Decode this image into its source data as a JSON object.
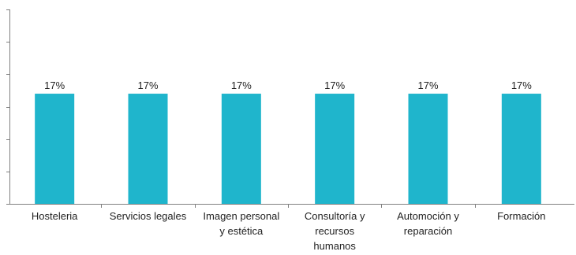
{
  "chart_data": {
    "type": "bar",
    "categories": [
      [
        "Hosteleria"
      ],
      [
        "Servicios legales"
      ],
      [
        "Imagen personal",
        "y estética"
      ],
      [
        "Consultoría y",
        "recursos",
        "humanos"
      ],
      [
        "Automoción y",
        "reparación"
      ],
      [
        "Formación"
      ]
    ],
    "values": [
      17,
      17,
      17,
      17,
      17,
      17
    ],
    "data_labels": [
      "17%",
      "17%",
      "17%",
      "17%",
      "17%",
      "17%"
    ],
    "unit": "%",
    "ylim": [
      0,
      30
    ],
    "y_tick_step": 5,
    "y_tick_labels_shown": false,
    "grid": false,
    "legend": "none",
    "title": "",
    "xlabel": "",
    "ylabel": ""
  },
  "colors": {
    "bar": "#1FB5CC",
    "axis": "#808080",
    "text": "#222222"
  }
}
